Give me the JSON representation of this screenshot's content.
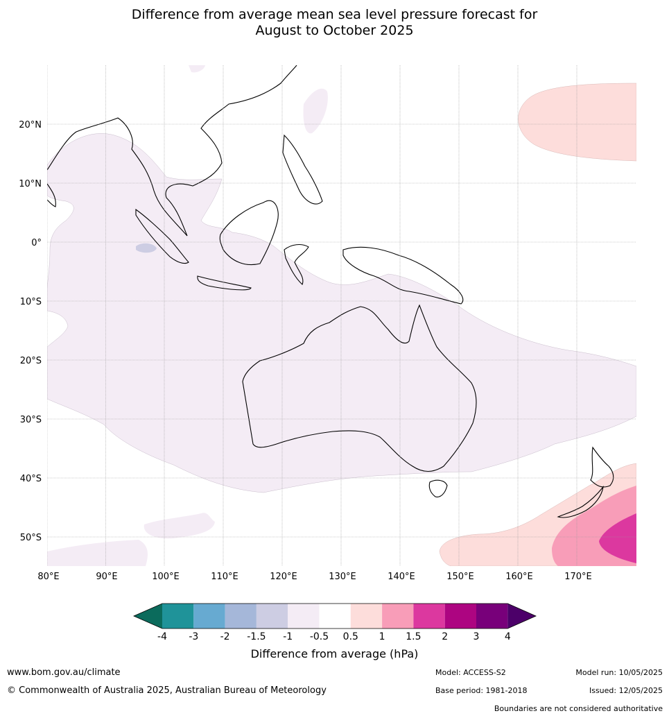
{
  "title_line1": "Difference from average mean sea level pressure forecast for",
  "title_line2": "August to October 2025",
  "map": {
    "lon_labels": [
      "80°E",
      "90°E",
      "100°E",
      "110°E",
      "120°E",
      "130°E",
      "140°E",
      "150°E",
      "160°E",
      "170°E"
    ],
    "lat_labels": [
      "20°N",
      "10°N",
      "0°",
      "10°S",
      "20°S",
      "30°S",
      "40°S",
      "50°S"
    ]
  },
  "colorbar": {
    "label": "Difference from average (hPa)",
    "ticks": [
      "-4",
      "-3",
      "-2",
      "-1.5",
      "-1",
      "-0.5",
      "0.5",
      "1",
      "1.5",
      "2",
      "3",
      "4"
    ],
    "colors": [
      "#0b6b5c",
      "#1f9399",
      "#67aad1",
      "#a5b7d9",
      "#cdcde3",
      "#f4ecf5",
      "#ffffff",
      "#fddddb",
      "#f89db8",
      "#dc389f",
      "#ad0581",
      "#78007a",
      "#4c0069"
    ]
  },
  "footer": {
    "website": "www.bom.gov.au/climate",
    "copyright": "© Commonwealth of Australia 2025, Australian Bureau of Meteorology",
    "model": "Model: ACCESS-S2",
    "base_period": "Base period: 1981-2018",
    "model_run": "Model run: 10/05/2025",
    "issued": "Issued: 12/05/2025",
    "disclaimer": "Boundaries are not considered authoritative"
  }
}
